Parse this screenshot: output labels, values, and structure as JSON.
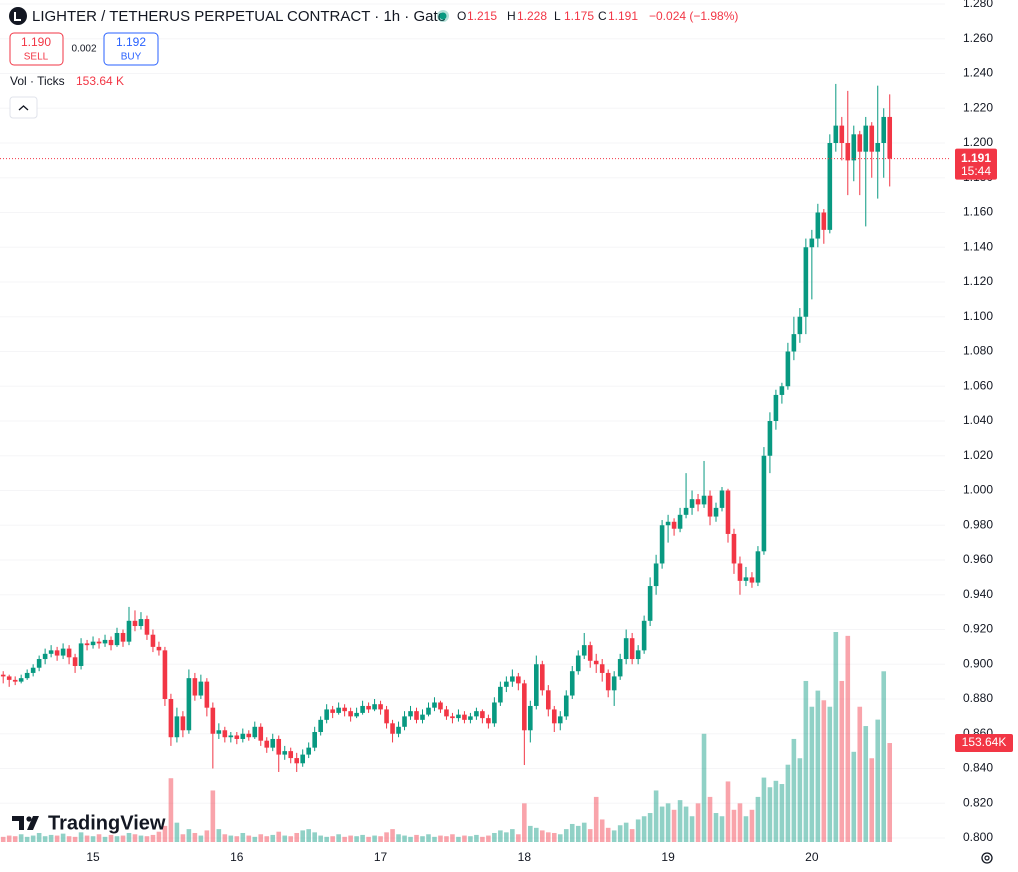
{
  "chart_data": {
    "type": "candlestick",
    "title": "LIGHTER / TETHERUS PERPETUAL CONTRACT · 1h · Gate",
    "ohlc_labels": [
      "O",
      "H",
      "L",
      "C"
    ],
    "change": "−0.024 (−1.98%)",
    "sell": {
      "price": "1.190",
      "label": "SELL"
    },
    "spread": "0.002",
    "buy": {
      "price": "1.192",
      "label": "BUY"
    },
    "volume_indicator": "Vol · Ticks",
    "volume_indicator_value": "153.64 K",
    "volume_value_label": "153.64K",
    "countdown": "15:44",
    "logo_text": "TradingView",
    "up_color": "#089981",
    "down_color": "#f23645",
    "grid": true,
    "ylim": [
      0.8,
      1.28
    ],
    "yticks": [
      {
        "value": 0.8,
        "label": "0.800"
      },
      {
        "value": 0.82,
        "label": "0.820"
      },
      {
        "value": 0.84,
        "label": "0.840"
      },
      {
        "value": 0.86,
        "label": "0.860"
      },
      {
        "value": 0.88,
        "label": "0.880"
      },
      {
        "value": 0.9,
        "label": "0.900"
      },
      {
        "value": 0.92,
        "label": "0.920"
      },
      {
        "value": 0.94,
        "label": "0.940"
      },
      {
        "value": 0.96,
        "label": "0.960"
      },
      {
        "value": 0.98,
        "label": "0.980"
      },
      {
        "value": 1,
        "label": "1.000"
      },
      {
        "value": 1.02,
        "label": "1.020"
      },
      {
        "value": 1.04,
        "label": "1.040"
      },
      {
        "value": 1.06,
        "label": "1.060"
      },
      {
        "value": 1.08,
        "label": "1.080"
      },
      {
        "value": 1.1,
        "label": "1.100"
      },
      {
        "value": 1.12,
        "label": "1.120"
      },
      {
        "value": 1.14,
        "label": "1.140"
      },
      {
        "value": 1.16,
        "label": "1.160"
      },
      {
        "value": 1.18,
        "label": "1.180"
      },
      {
        "value": 1.2,
        "label": "1.200"
      },
      {
        "value": 1.22,
        "label": "1.220"
      },
      {
        "value": 1.24,
        "label": "1.240"
      },
      {
        "value": 1.26,
        "label": "1.260"
      },
      {
        "value": 1.28,
        "label": "1.280"
      }
    ],
    "categories": [
      null,
      null,
      null,
      null,
      null,
      null,
      null,
      null,
      null,
      null,
      null,
      null,
      null,
      null,
      null,
      "15",
      null,
      null,
      null,
      null,
      null,
      null,
      null,
      null,
      null,
      null,
      null,
      null,
      null,
      null,
      null,
      null,
      null,
      null,
      null,
      null,
      null,
      null,
      null,
      "16",
      null,
      null,
      null,
      null,
      null,
      null,
      null,
      null,
      null,
      null,
      null,
      null,
      null,
      null,
      null,
      null,
      null,
      null,
      null,
      null,
      null,
      null,
      null,
      "17",
      null,
      null,
      null,
      null,
      null,
      null,
      null,
      null,
      null,
      null,
      null,
      null,
      null,
      null,
      null,
      null,
      null,
      null,
      null,
      null,
      null,
      null,
      null,
      "18",
      null,
      null,
      null,
      null,
      null,
      null,
      null,
      null,
      null,
      null,
      null,
      null,
      null,
      null,
      null,
      null,
      null,
      null,
      null,
      null,
      null,
      null,
      null,
      "19",
      null,
      null,
      null,
      null,
      null,
      null,
      null,
      null,
      null,
      null,
      null,
      null,
      null,
      null,
      null,
      null,
      null,
      null,
      null,
      null,
      null,
      null,
      null,
      "20",
      null,
      null,
      null,
      null,
      null,
      null,
      null,
      null,
      null,
      null,
      null,
      null,
      null
    ],
    "ohlc": [
      [
        0.894,
        0.896,
        0.889,
        0.893
      ],
      [
        0.893,
        0.894,
        0.887,
        0.891
      ],
      [
        0.891,
        0.893,
        0.888,
        0.89
      ],
      [
        0.89,
        0.894,
        0.889,
        0.892
      ],
      [
        0.892,
        0.897,
        0.891,
        0.895
      ],
      [
        0.895,
        0.9,
        0.893,
        0.898
      ],
      [
        0.898,
        0.905,
        0.896,
        0.903
      ],
      [
        0.903,
        0.909,
        0.9,
        0.906
      ],
      [
        0.906,
        0.911,
        0.904,
        0.908
      ],
      [
        0.908,
        0.91,
        0.902,
        0.905
      ],
      [
        0.905,
        0.912,
        0.903,
        0.909
      ],
      [
        0.909,
        0.911,
        0.9,
        0.904
      ],
      [
        0.904,
        0.906,
        0.895,
        0.899
      ],
      [
        0.899,
        0.915,
        0.897,
        0.912
      ],
      [
        0.912,
        0.914,
        0.908,
        0.911
      ],
      [
        0.911,
        0.916,
        0.909,
        0.913
      ],
      [
        0.913,
        0.915,
        0.909,
        0.912
      ],
      [
        0.912,
        0.917,
        0.91,
        0.914
      ],
      [
        0.914,
        0.916,
        0.908,
        0.911
      ],
      [
        0.911,
        0.921,
        0.91,
        0.918
      ],
      [
        0.918,
        0.92,
        0.91,
        0.913
      ],
      [
        0.913,
        0.933,
        0.911,
        0.925
      ],
      [
        0.925,
        0.931,
        0.919,
        0.922
      ],
      [
        0.922,
        0.93,
        0.92,
        0.926
      ],
      [
        0.926,
        0.928,
        0.914,
        0.917
      ],
      [
        0.917,
        0.92,
        0.907,
        0.91
      ],
      [
        0.91,
        0.913,
        0.905,
        0.908
      ],
      [
        0.908,
        0.91,
        0.876,
        0.88
      ],
      [
        0.88,
        0.883,
        0.853,
        0.858
      ],
      [
        0.858,
        0.875,
        0.855,
        0.87
      ],
      [
        0.87,
        0.873,
        0.858,
        0.862
      ],
      [
        0.862,
        0.897,
        0.86,
        0.892
      ],
      [
        0.892,
        0.895,
        0.879,
        0.882
      ],
      [
        0.882,
        0.894,
        0.88,
        0.89
      ],
      [
        0.89,
        0.892,
        0.87,
        0.875
      ],
      [
        0.875,
        0.878,
        0.84,
        0.86
      ],
      [
        0.86,
        0.866,
        0.857,
        0.862
      ],
      [
        0.862,
        0.864,
        0.855,
        0.858
      ],
      [
        0.858,
        0.861,
        0.855,
        0.859
      ],
      [
        0.859,
        0.861,
        0.854,
        0.857
      ],
      [
        0.857,
        0.863,
        0.855,
        0.86
      ],
      [
        0.86,
        0.862,
        0.856,
        0.858
      ],
      [
        0.858,
        0.867,
        0.857,
        0.864
      ],
      [
        0.864,
        0.866,
        0.853,
        0.856
      ],
      [
        0.856,
        0.858,
        0.849,
        0.852
      ],
      [
        0.852,
        0.86,
        0.85,
        0.857
      ],
      [
        0.857,
        0.859,
        0.838,
        0.848
      ],
      [
        0.848,
        0.853,
        0.845,
        0.85
      ],
      [
        0.85,
        0.852,
        0.843,
        0.846
      ],
      [
        0.846,
        0.849,
        0.838,
        0.843
      ],
      [
        0.843,
        0.851,
        0.841,
        0.848
      ],
      [
        0.848,
        0.855,
        0.846,
        0.852
      ],
      [
        0.852,
        0.864,
        0.85,
        0.861
      ],
      [
        0.861,
        0.87,
        0.859,
        0.868
      ],
      [
        0.868,
        0.877,
        0.866,
        0.874
      ],
      [
        0.874,
        0.876,
        0.869,
        0.872
      ],
      [
        0.872,
        0.878,
        0.871,
        0.875
      ],
      [
        0.875,
        0.877,
        0.87,
        0.873
      ],
      [
        0.873,
        0.875,
        0.867,
        0.87
      ],
      [
        0.87,
        0.875,
        0.869,
        0.872
      ],
      [
        0.872,
        0.879,
        0.871,
        0.876
      ],
      [
        0.876,
        0.878,
        0.872,
        0.874
      ],
      [
        0.874,
        0.88,
        0.873,
        0.877
      ],
      [
        0.877,
        0.879,
        0.871,
        0.874
      ],
      [
        0.874,
        0.876,
        0.863,
        0.866
      ],
      [
        0.866,
        0.868,
        0.855,
        0.86
      ],
      [
        0.86,
        0.867,
        0.858,
        0.864
      ],
      [
        0.864,
        0.873,
        0.862,
        0.87
      ],
      [
        0.87,
        0.876,
        0.868,
        0.873
      ],
      [
        0.873,
        0.875,
        0.866,
        0.868
      ],
      [
        0.868,
        0.874,
        0.866,
        0.871
      ],
      [
        0.871,
        0.878,
        0.87,
        0.875
      ],
      [
        0.875,
        0.881,
        0.873,
        0.878
      ],
      [
        0.878,
        0.879,
        0.872,
        0.874
      ],
      [
        0.874,
        0.876,
        0.868,
        0.87
      ],
      [
        0.87,
        0.872,
        0.866,
        0.869
      ],
      [
        0.869,
        0.874,
        0.867,
        0.871
      ],
      [
        0.871,
        0.873,
        0.866,
        0.868
      ],
      [
        0.868,
        0.872,
        0.866,
        0.87
      ],
      [
        0.87,
        0.875,
        0.868,
        0.873
      ],
      [
        0.873,
        0.874,
        0.866,
        0.869
      ],
      [
        0.869,
        0.871,
        0.863,
        0.866
      ],
      [
        0.866,
        0.881,
        0.864,
        0.878
      ],
      [
        0.878,
        0.89,
        0.876,
        0.887
      ],
      [
        0.887,
        0.893,
        0.884,
        0.89
      ],
      [
        0.89,
        0.897,
        0.887,
        0.893
      ],
      [
        0.893,
        0.895,
        0.885,
        0.889
      ],
      [
        0.889,
        0.891,
        0.842,
        0.862
      ],
      [
        0.862,
        0.879,
        0.855,
        0.876
      ],
      [
        0.876,
        0.905,
        0.874,
        0.9
      ],
      [
        0.9,
        0.902,
        0.882,
        0.885
      ],
      [
        0.885,
        0.888,
        0.87,
        0.874
      ],
      [
        0.874,
        0.876,
        0.861,
        0.866
      ],
      [
        0.866,
        0.873,
        0.862,
        0.87
      ],
      [
        0.87,
        0.885,
        0.868,
        0.882
      ],
      [
        0.882,
        0.899,
        0.88,
        0.896
      ],
      [
        0.896,
        0.908,
        0.894,
        0.905
      ],
      [
        0.905,
        0.918,
        0.903,
        0.911
      ],
      [
        0.911,
        0.913,
        0.898,
        0.902
      ],
      [
        0.902,
        0.906,
        0.895,
        0.9
      ],
      [
        0.9,
        0.903,
        0.89,
        0.895
      ],
      [
        0.895,
        0.897,
        0.881,
        0.885
      ],
      [
        0.885,
        0.896,
        0.876,
        0.893
      ],
      [
        0.893,
        0.906,
        0.891,
        0.903
      ],
      [
        0.903,
        0.92,
        0.9,
        0.915
      ],
      [
        0.915,
        0.918,
        0.9,
        0.903
      ],
      [
        0.903,
        0.911,
        0.9,
        0.908
      ],
      [
        0.908,
        0.928,
        0.906,
        0.925
      ],
      [
        0.925,
        0.95,
        0.922,
        0.945
      ],
      [
        0.945,
        0.963,
        0.94,
        0.958
      ],
      [
        0.958,
        0.983,
        0.955,
        0.98
      ],
      [
        0.98,
        0.986,
        0.97,
        0.982
      ],
      [
        0.982,
        0.984,
        0.974,
        0.978
      ],
      [
        0.978,
        0.99,
        0.976,
        0.986
      ],
      [
        0.986,
        1.01,
        0.984,
        0.99
      ],
      [
        0.99,
        1,
        0.986,
        0.995
      ],
      [
        0.995,
        0.998,
        0.988,
        0.992
      ],
      [
        0.992,
        1.017,
        0.99,
        0.997
      ],
      [
        0.997,
        1,
        0.98,
        0.985
      ],
      [
        0.985,
        0.993,
        0.982,
        0.99
      ],
      [
        0.99,
        1.002,
        0.988,
        1
      ],
      [
        1,
        1.001,
        0.97,
        0.975
      ],
      [
        0.975,
        0.978,
        0.952,
        0.958
      ],
      [
        0.958,
        0.962,
        0.94,
        0.948
      ],
      [
        0.948,
        0.956,
        0.945,
        0.95
      ],
      [
        0.95,
        0.953,
        0.944,
        0.947
      ],
      [
        0.947,
        0.968,
        0.945,
        0.965
      ],
      [
        0.965,
        1.025,
        0.963,
        1.02
      ],
      [
        1.02,
        1.045,
        1.01,
        1.04
      ],
      [
        1.04,
        1.058,
        1.035,
        1.055
      ],
      [
        1.055,
        1.062,
        1.05,
        1.06
      ],
      [
        1.06,
        1.085,
        1.058,
        1.08
      ],
      [
        1.08,
        1.1,
        1.075,
        1.09
      ],
      [
        1.09,
        1.105,
        1.085,
        1.1
      ],
      [
        1.1,
        1.145,
        1.09,
        1.14
      ],
      [
        1.14,
        1.15,
        1.11,
        1.145
      ],
      [
        1.145,
        1.165,
        1.14,
        1.16
      ],
      [
        1.16,
        1.162,
        1.142,
        1.15
      ],
      [
        1.15,
        1.205,
        1.148,
        1.2
      ],
      [
        1.2,
        1.234,
        1.195,
        1.21
      ],
      [
        1.21,
        1.215,
        1.19,
        1.2
      ],
      [
        1.2,
        1.23,
        1.17,
        1.19
      ],
      [
        1.19,
        1.21,
        1.178,
        1.205
      ],
      [
        1.205,
        1.207,
        1.17,
        1.195
      ],
      [
        1.195,
        1.215,
        1.152,
        1.21
      ],
      [
        1.21,
        1.212,
        1.18,
        1.195
      ],
      [
        1.195,
        1.233,
        1.168,
        1.2
      ],
      [
        1.2,
        1.22,
        1.18,
        1.215
      ],
      [
        1.215,
        1.228,
        1.175,
        1.191
      ]
    ],
    "volume": [
      8000,
      10000,
      9000,
      12000,
      8000,
      10000,
      14000,
      9000,
      11000,
      10000,
      13000,
      9000,
      8000,
      15000,
      10000,
      9000,
      12000,
      8000,
      11000,
      9000,
      10000,
      14000,
      12000,
      10000,
      9000,
      11000,
      16000,
      25000,
      99000,
      30000,
      12000,
      20000,
      14000,
      10000,
      18000,
      80000,
      20000,
      12000,
      10000,
      9000,
      14000,
      10000,
      8000,
      12000,
      9000,
      11000,
      16000,
      10000,
      9000,
      14000,
      18000,
      20000,
      15000,
      10000,
      8000,
      9000,
      12000,
      8000,
      10000,
      9000,
      11000,
      8000,
      10000,
      9000,
      15000,
      20000,
      12000,
      10000,
      8000,
      11000,
      9000,
      12000,
      8000,
      10000,
      9000,
      12000,
      8000,
      10000,
      9000,
      11000,
      8000,
      10000,
      14000,
      18000,
      15000,
      20000,
      12000,
      60000,
      25000,
      22000,
      18000,
      15000,
      14000,
      12000,
      20000,
      28000,
      25000,
      30000,
      20000,
      70000,
      35000,
      22000,
      18000,
      26000,
      30000,
      20000,
      35000,
      40000,
      45000,
      80000,
      55000,
      60000,
      50000,
      65000,
      55000,
      40000,
      60000,
      168000,
      70000,
      45000,
      40000,
      94000,
      50000,
      60000,
      40000,
      50000,
      70000,
      100000,
      85000,
      95000,
      90000,
      120000,
      160000,
      130000,
      250000,
      210000,
      235000,
      220000,
      210000,
      326000,
      250000,
      320000,
      140000,
      210000,
      180000,
      130000,
      190000,
      265000,
      153640
    ]
  }
}
